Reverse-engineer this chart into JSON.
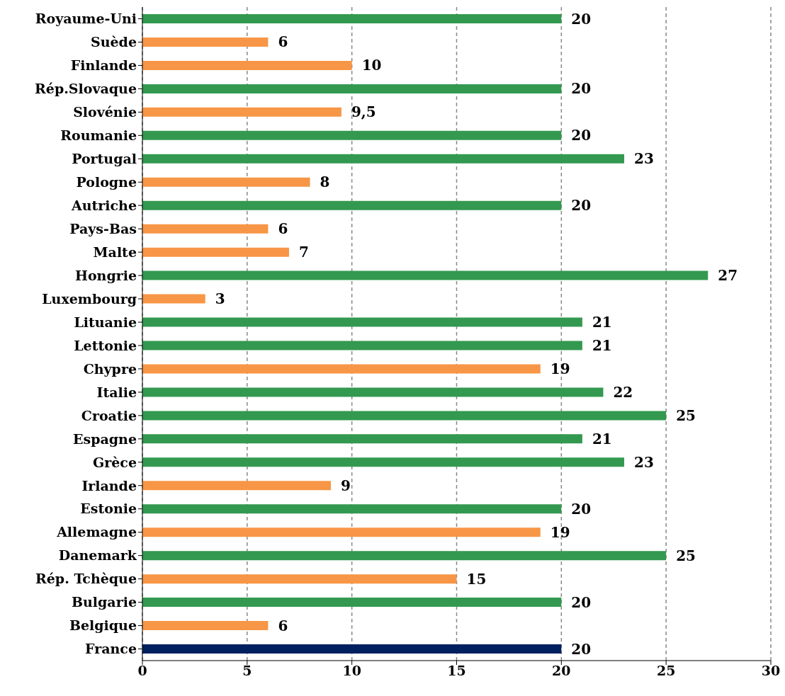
{
  "chart_data": {
    "type": "bar",
    "orientation": "horizontal",
    "categories": [
      "Royaume-Uni",
      "Suède",
      "Finlande",
      "Rép.Slovaque",
      "Slovénie",
      "Roumanie",
      "Portugal",
      "Pologne",
      "Autriche",
      "Pays-Bas",
      "Malte",
      "Hongrie",
      "Luxembourg",
      "Lituanie",
      "Lettonie",
      "Chypre",
      "Italie",
      "Croatie",
      "Espagne",
      "Grèce",
      "Irlande",
      "Estonie",
      "Allemagne",
      "Danemark",
      "Rép. Tchèque",
      "Bulgarie",
      "Belgique",
      "France"
    ],
    "values": [
      20,
      6,
      10,
      20,
      9.5,
      20,
      23,
      8,
      20,
      6,
      7,
      27,
      3,
      21,
      21,
      19,
      22,
      25,
      21,
      23,
      9,
      20,
      19,
      25,
      15,
      20,
      6,
      20
    ],
    "value_labels": [
      "20",
      "6",
      "10",
      "20",
      "9,5",
      "20",
      "23",
      "8",
      "20",
      "6",
      "7",
      "27",
      "3",
      "21",
      "21",
      "19",
      "22",
      "25",
      "21",
      "23",
      "9",
      "20",
      "19",
      "25",
      "15",
      "20",
      "6",
      "20"
    ],
    "colors": [
      "#339950",
      "#f79646",
      "#f79646",
      "#339950",
      "#f79646",
      "#339950",
      "#339950",
      "#f79646",
      "#339950",
      "#f79646",
      "#f79646",
      "#339950",
      "#f79646",
      "#339950",
      "#339950",
      "#f79646",
      "#339950",
      "#339950",
      "#339950",
      "#339950",
      "#f79646",
      "#339950",
      "#f79646",
      "#339950",
      "#f79646",
      "#339950",
      "#f79646",
      "#002060"
    ],
    "xlim": [
      0,
      30
    ],
    "xticks": [
      0,
      5,
      10,
      15,
      20,
      25,
      30
    ],
    "grid": "x"
  }
}
